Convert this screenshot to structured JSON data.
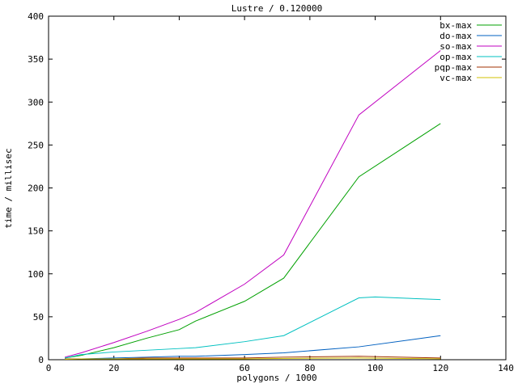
{
  "window": {
    "title": "Lustre / 0.120000"
  },
  "chart_data": {
    "type": "line",
    "title": "Lustre / 0.120000",
    "xlabel": "polygons / 1000",
    "ylabel": "time / millisec",
    "xlim": [
      0,
      140
    ],
    "ylim": [
      0,
      400
    ],
    "xticks": [
      0,
      20,
      40,
      60,
      80,
      100,
      120,
      140
    ],
    "yticks": [
      0,
      50,
      100,
      150,
      200,
      250,
      300,
      350,
      400
    ],
    "grid": false,
    "legend_position": "top-right-inside",
    "background": "#ffffff",
    "axis_color": "#000000",
    "series": [
      {
        "name": "bx-max",
        "color": "#00a000",
        "x": [
          5,
          10,
          20,
          30,
          40,
          45,
          60,
          72,
          95,
          120
        ],
        "y": [
          2,
          5,
          14,
          25,
          35,
          45,
          68,
          95,
          213,
          275
        ]
      },
      {
        "name": "do-max",
        "color": "#0060c0",
        "x": [
          5,
          10,
          20,
          30,
          40,
          45,
          60,
          72,
          95,
          120
        ],
        "y": [
          1,
          1,
          2,
          3,
          4,
          4,
          6,
          8,
          15,
          28
        ]
      },
      {
        "name": "so-max",
        "color": "#c000c0",
        "x": [
          5,
          10,
          20,
          30,
          40,
          45,
          60,
          72,
          95,
          120
        ],
        "y": [
          3,
          8,
          20,
          33,
          47,
          55,
          88,
          122,
          285,
          360
        ]
      },
      {
        "name": "op-max",
        "color": "#00c0c0",
        "x": [
          5,
          10,
          20,
          30,
          40,
          45,
          60,
          72,
          95,
          100,
          120
        ],
        "y": [
          2,
          6,
          9,
          11,
          13,
          14,
          21,
          28,
          72,
          73,
          70
        ]
      },
      {
        "name": "pqp-max",
        "color": "#a03000",
        "x": [
          5,
          10,
          20,
          30,
          40,
          45,
          60,
          72,
          95,
          120
        ],
        "y": [
          1,
          1,
          1,
          2,
          2,
          2,
          2,
          3,
          4,
          2
        ]
      },
      {
        "name": "vc-max",
        "color": "#d0c000",
        "x": [
          5,
          10,
          20,
          30,
          40,
          45,
          60,
          72,
          95,
          120
        ],
        "y": [
          0.5,
          1,
          1,
          1,
          1,
          1,
          1,
          1.5,
          2,
          1
        ]
      }
    ]
  }
}
